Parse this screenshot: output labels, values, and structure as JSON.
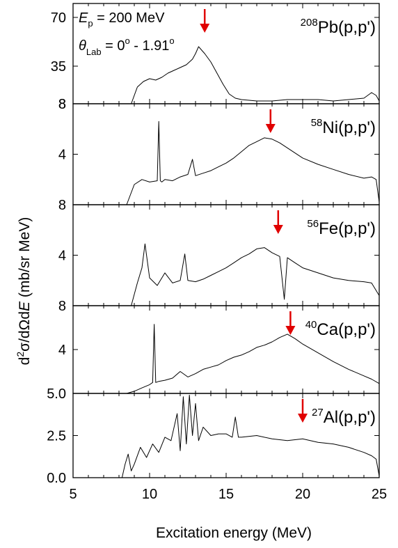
{
  "figure": {
    "ylabel": "d²σ/dΩdE (mb/sr MeV)",
    "xlabel": "Excitation energy (MeV)",
    "ylabel_parts": {
      "d": "d",
      "sup2": "2",
      "mid": "σ/dΩd",
      "E": "E",
      "unit": " (mb/sr MeV)"
    },
    "annotation": {
      "ep_symbol": "E",
      "ep_sub": "p",
      "ep_value": " = 200 MeV",
      "theta_symbol": "θ",
      "theta_sub": "Lab",
      "theta_value": " = 0",
      "theta_deg1": "o",
      "theta_dash": " - 1.91",
      "theta_deg2": "o"
    }
  },
  "colors": {
    "trace": "#000000",
    "arrow": "#e00000",
    "frame": "#000000"
  },
  "chart_data": [
    {
      "type": "line",
      "title_mass": "208",
      "title_elem": "Pb",
      "title_rxn": "(p,p')",
      "xlim": [
        5,
        25
      ],
      "ylim": [
        8,
        80
      ],
      "yticks": [
        8,
        35,
        70
      ],
      "ytick_labels": [
        "8",
        "35",
        "70"
      ],
      "arrow_x": 13.6,
      "x": [
        8.8,
        9.2,
        9.6,
        10.0,
        10.4,
        10.8,
        11.2,
        11.6,
        12.0,
        12.4,
        12.8,
        13.0,
        13.2,
        13.6,
        14.0,
        14.4,
        14.8,
        15.2,
        15.6,
        16.0,
        17.0,
        18.0,
        19.0,
        20.0,
        21.0,
        22.0,
        23.0,
        24.0,
        24.5,
        24.8,
        25.0
      ],
      "y": [
        8,
        20,
        24,
        26,
        25,
        27,
        30,
        32,
        34,
        36,
        40,
        44,
        49,
        44,
        38,
        30,
        22,
        15,
        12,
        11,
        10,
        10,
        11,
        11,
        11,
        10,
        11,
        12,
        16,
        14,
        10
      ]
    },
    {
      "type": "line",
      "title_mass": "58",
      "title_elem": "Ni",
      "title_rxn": "(p,p')",
      "xlim": [
        5,
        25
      ],
      "ylim": [
        0,
        8
      ],
      "yticks": [
        4,
        8
      ],
      "ytick_labels": [
        "4",
        "8"
      ],
      "arrow_x": 17.9,
      "x": [
        8.5,
        9.0,
        9.5,
        10.0,
        10.5,
        10.6,
        10.7,
        10.8,
        11.0,
        11.5,
        12.0,
        12.5,
        12.8,
        13.0,
        13.5,
        14.0,
        14.5,
        15.0,
        15.5,
        16.0,
        16.5,
        17.0,
        17.5,
        18.0,
        18.5,
        19.0,
        19.5,
        20.0,
        21.0,
        22.0,
        23.0,
        24.0,
        24.5,
        24.8,
        25.0
      ],
      "y": [
        0,
        1.6,
        2.0,
        1.8,
        1.9,
        6.6,
        1.9,
        1.8,
        2.0,
        1.9,
        2.2,
        2.4,
        3.6,
        2.3,
        2.5,
        2.7,
        3.0,
        3.3,
        3.7,
        4.2,
        4.7,
        5.0,
        5.3,
        5.2,
        4.9,
        4.5,
        4.1,
        3.7,
        3.2,
        2.8,
        2.4,
        2.1,
        2.2,
        2.0,
        0.2
      ]
    },
    {
      "type": "line",
      "title_mass": "56",
      "title_elem": "Fe",
      "title_rxn": "(p,p')",
      "xlim": [
        5,
        25
      ],
      "ylim": [
        0,
        8
      ],
      "yticks": [
        4,
        8
      ],
      "ytick_labels": [
        "4",
        "8"
      ],
      "arrow_x": 18.4,
      "x": [
        8.8,
        9.2,
        9.5,
        9.7,
        10.0,
        10.5,
        11.0,
        11.5,
        12.0,
        12.3,
        12.5,
        13.0,
        13.5,
        14.0,
        14.5,
        15.0,
        15.5,
        16.0,
        16.5,
        17.0,
        17.5,
        18.0,
        18.5,
        18.8,
        19.0,
        19.5,
        20.0,
        21.0,
        22.0,
        23.0,
        24.0,
        24.5,
        25.0
      ],
      "y": [
        0,
        1.8,
        3.0,
        4.9,
        2.2,
        1.6,
        2.6,
        1.8,
        2.0,
        4.1,
        2.0,
        1.9,
        2.1,
        2.4,
        2.7,
        3.0,
        3.4,
        3.8,
        4.1,
        4.5,
        4.6,
        4.2,
        3.9,
        0.5,
        3.8,
        3.4,
        3.0,
        2.6,
        2.2,
        2.0,
        1.9,
        1.8,
        0.8
      ]
    },
    {
      "type": "line",
      "title_mass": "40",
      "title_elem": "Ca",
      "title_rxn": "(p,p')",
      "xlim": [
        5,
        25
      ],
      "ylim": [
        0,
        8
      ],
      "yticks": [
        4,
        8
      ],
      "ytick_labels": [
        "4",
        "8"
      ],
      "arrow_x": 19.2,
      "x": [
        8.5,
        9.0,
        9.5,
        10.0,
        10.2,
        10.3,
        10.4,
        10.6,
        11.0,
        11.5,
        12.0,
        12.5,
        13.0,
        13.5,
        14.0,
        14.5,
        15.0,
        15.5,
        16.0,
        16.5,
        17.0,
        17.5,
        18.0,
        18.5,
        19.0,
        19.5,
        20.0,
        21.0,
        22.0,
        23.0,
        24.0,
        24.5,
        25.0
      ],
      "y": [
        0,
        0.2,
        0.5,
        0.8,
        1.0,
        6.3,
        1.0,
        1.1,
        1.2,
        1.4,
        2.0,
        1.5,
        1.8,
        2.2,
        2.4,
        2.6,
        3.0,
        3.3,
        3.5,
        3.8,
        4.2,
        4.4,
        4.7,
        5.1,
        5.4,
        5.0,
        4.5,
        3.7,
        2.9,
        2.2,
        1.6,
        1.3,
        0.9
      ]
    },
    {
      "type": "line",
      "title_mass": "27",
      "title_elem": "Al",
      "title_rxn": "(p,p')",
      "xlim": [
        5,
        25
      ],
      "ylim": [
        0,
        5
      ],
      "yticks": [
        0,
        2.5,
        5
      ],
      "ytick_labels": [
        "0.0",
        "2.5",
        "5.0"
      ],
      "arrow_x": 20.0,
      "x": [
        8.2,
        8.4,
        8.6,
        8.8,
        9.0,
        9.4,
        9.8,
        10.2,
        10.6,
        11.0,
        11.4,
        11.8,
        12.0,
        12.2,
        12.4,
        12.6,
        12.8,
        13.0,
        13.2,
        13.5,
        14.0,
        14.5,
        15.0,
        15.4,
        15.6,
        15.8,
        16.0,
        17.0,
        18.0,
        19.0,
        20.0,
        21.0,
        22.0,
        23.0,
        24.0,
        24.5,
        24.8,
        25.0
      ],
      "y": [
        0,
        0.8,
        1.4,
        0.4,
        0.8,
        1.8,
        1.2,
        2.0,
        1.5,
        2.4,
        2.2,
        3.8,
        1.6,
        4.8,
        2.0,
        4.9,
        2.5,
        4.4,
        2.2,
        3.0,
        2.5,
        2.6,
        2.6,
        2.4,
        3.6,
        2.4,
        2.4,
        2.5,
        2.3,
        2.2,
        2.3,
        2.1,
        2.0,
        1.8,
        1.5,
        1.3,
        1.1,
        0.1
      ]
    }
  ]
}
